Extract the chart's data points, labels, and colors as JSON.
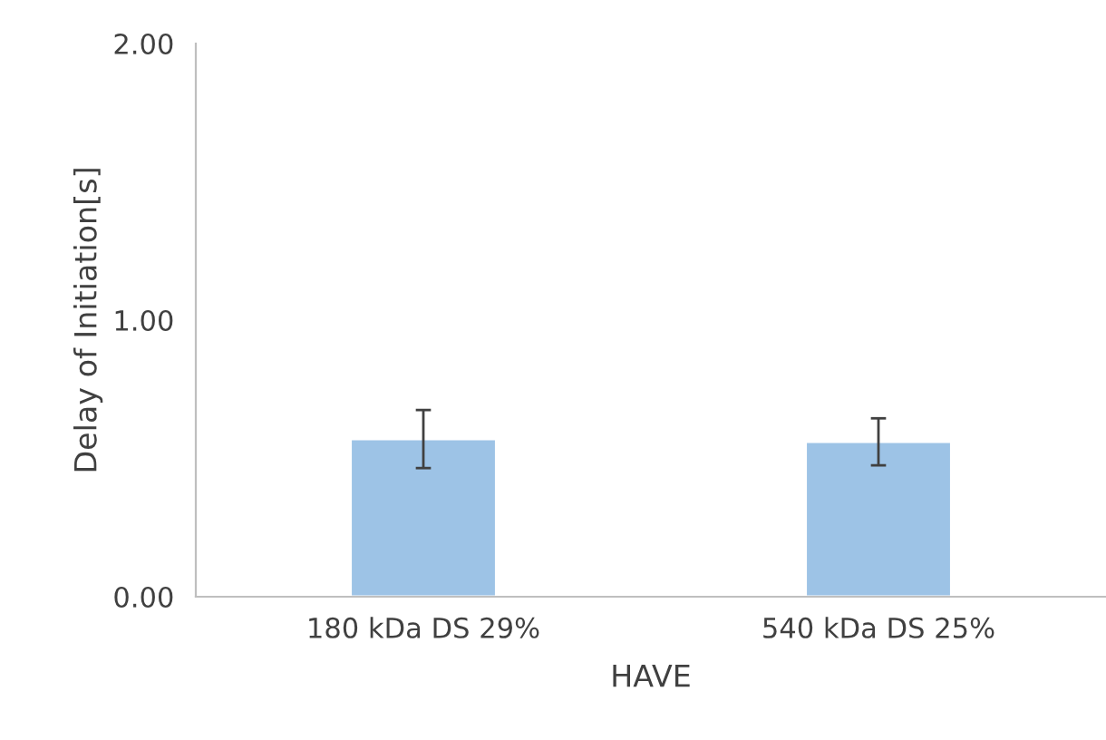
{
  "chart_data": {
    "type": "bar",
    "xlabel": "HAVE",
    "ylabel": "Delay of Initiation[s]",
    "categories": [
      "180 kDa DS 29%",
      "540 kDa DS 25%"
    ],
    "values": [
      0.57,
      0.56
    ],
    "errors": [
      0.105,
      0.085
    ],
    "color": "#9dc3e6",
    "ylim": [
      0,
      2
    ],
    "yticks": [
      {
        "value": 0,
        "label": "0.00"
      },
      {
        "value": 1,
        "label": "1.00"
      },
      {
        "value": 2,
        "label": "2.00"
      }
    ],
    "grid": false,
    "legend": false
  }
}
